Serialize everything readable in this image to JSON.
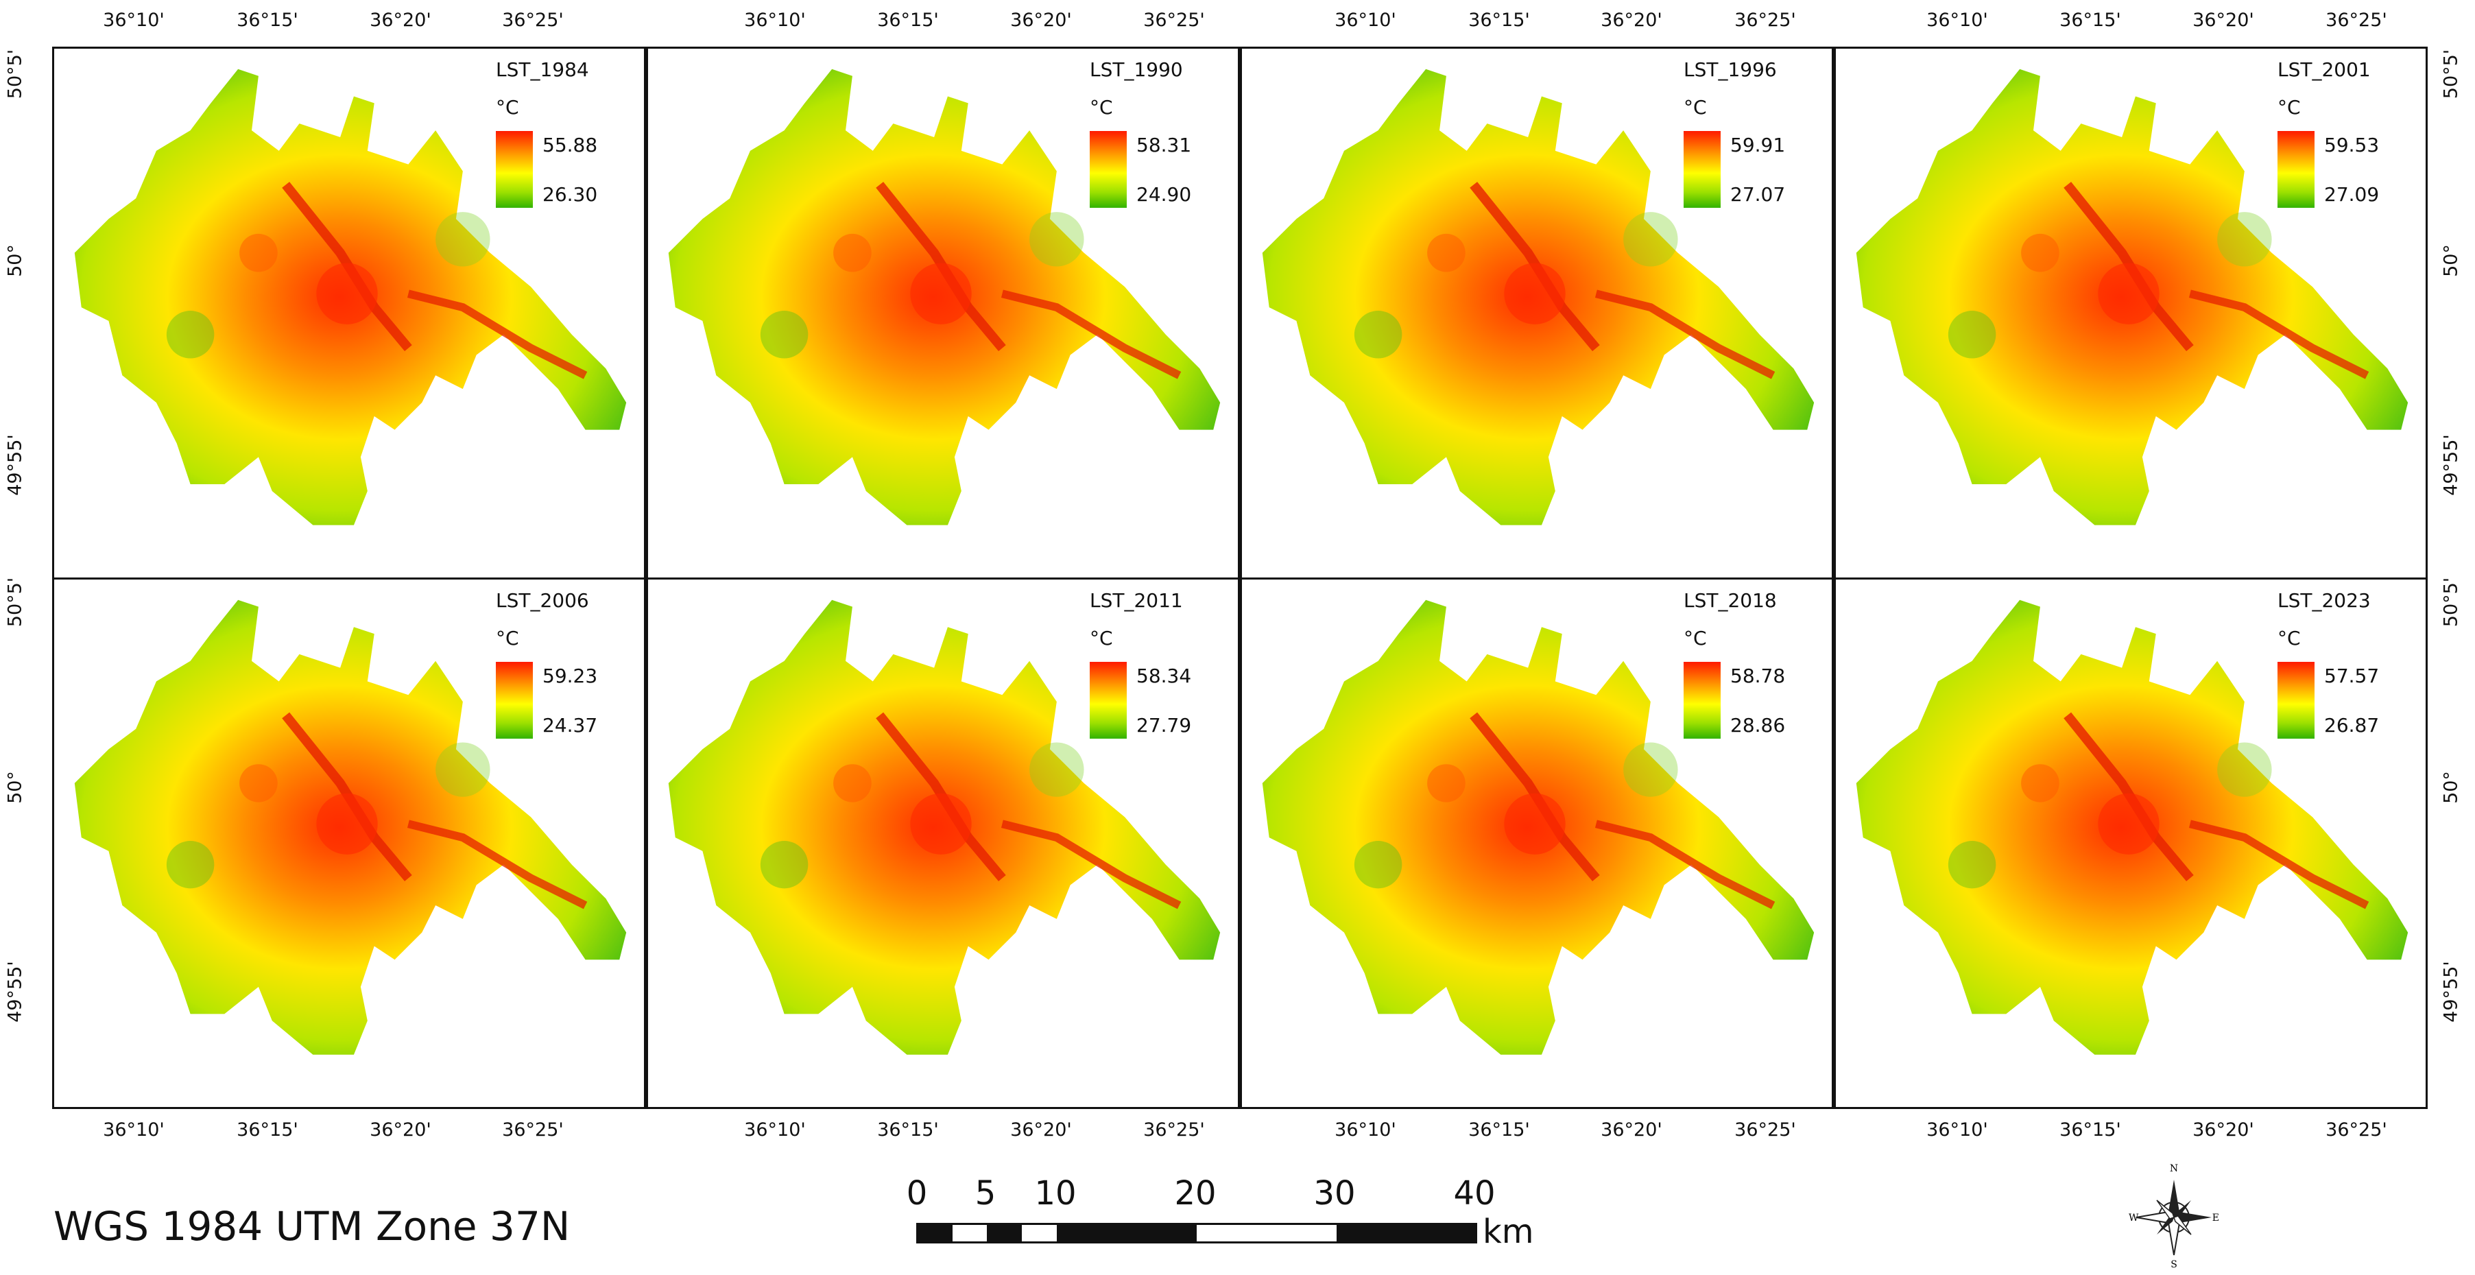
{
  "title_crs": "WGS 1984 UTM Zone 37N",
  "unit": "°C",
  "colors": {
    "high": "#ff1a00",
    "mid": "#ffff00",
    "low": "#33b300"
  },
  "lon_labels": [
    "36°10'",
    "36°15'",
    "36°20'",
    "36°25'"
  ],
  "lat_labels": [
    "50°5'",
    "50°",
    "49°55'"
  ],
  "panels": [
    {
      "name": "LST_1984",
      "max": "55.88",
      "min": "26.30"
    },
    {
      "name": "LST_1990",
      "max": "58.31",
      "min": "24.90"
    },
    {
      "name": "LST_1996",
      "max": "59.91",
      "min": "27.07"
    },
    {
      "name": "LST_2001",
      "max": "59.53",
      "min": "27.09"
    },
    {
      "name": "LST_2006",
      "max": "59.23",
      "min": "24.37"
    },
    {
      "name": "LST_2011",
      "max": "58.34",
      "min": "27.79"
    },
    {
      "name": "LST_2018",
      "max": "58.78",
      "min": "28.86"
    },
    {
      "name": "LST_2023",
      "max": "57.57",
      "min": "26.87"
    }
  ],
  "scalebar": {
    "ticks": [
      "0",
      "5",
      "10",
      "20",
      "30",
      "40"
    ],
    "unit": "km"
  },
  "compass": {
    "n": "N",
    "s": "S",
    "e": "E",
    "w": "W"
  },
  "icons": {
    "compass": "north-arrow-compass-rose-icon"
  }
}
